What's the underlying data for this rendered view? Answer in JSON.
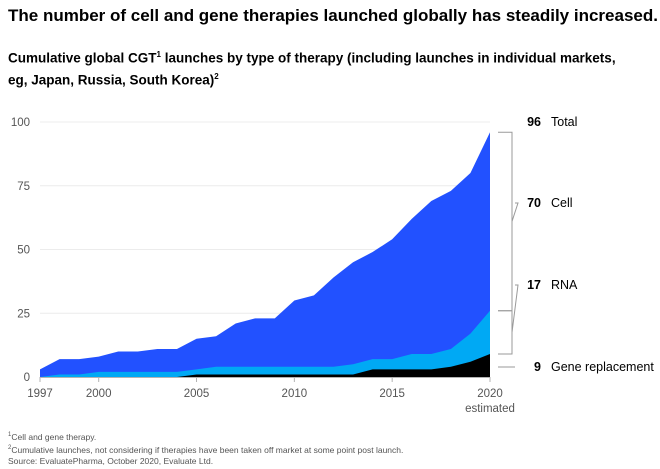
{
  "headline": "The number of cell and gene therapies launched globally has steadily increased.",
  "subtitle": {
    "text": "Cumulative global CGT",
    "sup1": "1",
    "text2": " launches by type of therapy (including launches in individual markets, eg, Japan, Russia, South Korea)",
    "sup2": "2"
  },
  "footnotes": {
    "n1_mark": "1",
    "n1": "Cell and gene therapy.",
    "n2_mark": "2",
    "n2": "Cumulative launches, not considering if therapies have been taken off market at some point post launch.",
    "source": "Source: EvaluatePharma, October 2020, Evaluate Ltd."
  },
  "colors": {
    "total": "#2251ff",
    "rna": "#00a9f4",
    "gene": "#000000",
    "axis": "#b3b3b3",
    "connector": "#9a9a9a"
  },
  "chart_data": {
    "type": "area",
    "stacked": true,
    "x": [
      1997,
      1998,
      1999,
      2000,
      2001,
      2002,
      2003,
      2004,
      2005,
      2006,
      2007,
      2008,
      2009,
      2010,
      2011,
      2012,
      2013,
      2014,
      2015,
      2016,
      2017,
      2018,
      2019,
      2020
    ],
    "series": [
      {
        "name": "Gene replacement",
        "values": [
          0,
          0,
          0,
          0,
          0,
          0,
          0,
          0,
          1,
          1,
          1,
          1,
          1,
          1,
          1,
          1,
          1,
          3,
          3,
          3,
          3,
          4,
          6,
          9
        ]
      },
      {
        "name": "RNA",
        "values": [
          0,
          1,
          1,
          2,
          2,
          2,
          2,
          2,
          2,
          3,
          3,
          3,
          3,
          3,
          3,
          3,
          4,
          4,
          4,
          6,
          6,
          7,
          11,
          17
        ]
      },
      {
        "name": "Cell",
        "values": [
          3,
          6,
          6,
          6,
          8,
          8,
          9,
          9,
          12,
          12,
          17,
          19,
          19,
          26,
          28,
          35,
          40,
          42,
          47,
          53,
          60,
          62,
          63,
          70
        ]
      }
    ],
    "totals": [
      3,
      7,
      7,
      8,
      10,
      10,
      11,
      11,
      15,
      16,
      21,
      23,
      23,
      30,
      32,
      39,
      45,
      49,
      54,
      62,
      69,
      73,
      80,
      96
    ],
    "ylim": [
      0,
      100
    ],
    "yticks": [
      "0",
      "25",
      "50",
      "75",
      "100"
    ],
    "xticks": [
      "1997",
      "2000",
      "2005",
      "2010",
      "2015",
      "2020"
    ],
    "xtick_sublabel": "estimated",
    "end_labels": [
      {
        "value": "96",
        "name": "Total"
      },
      {
        "value": "70",
        "name": "Cell"
      },
      {
        "value": "17",
        "name": "RNA"
      },
      {
        "value": "9",
        "name": "Gene replacement"
      }
    ]
  }
}
